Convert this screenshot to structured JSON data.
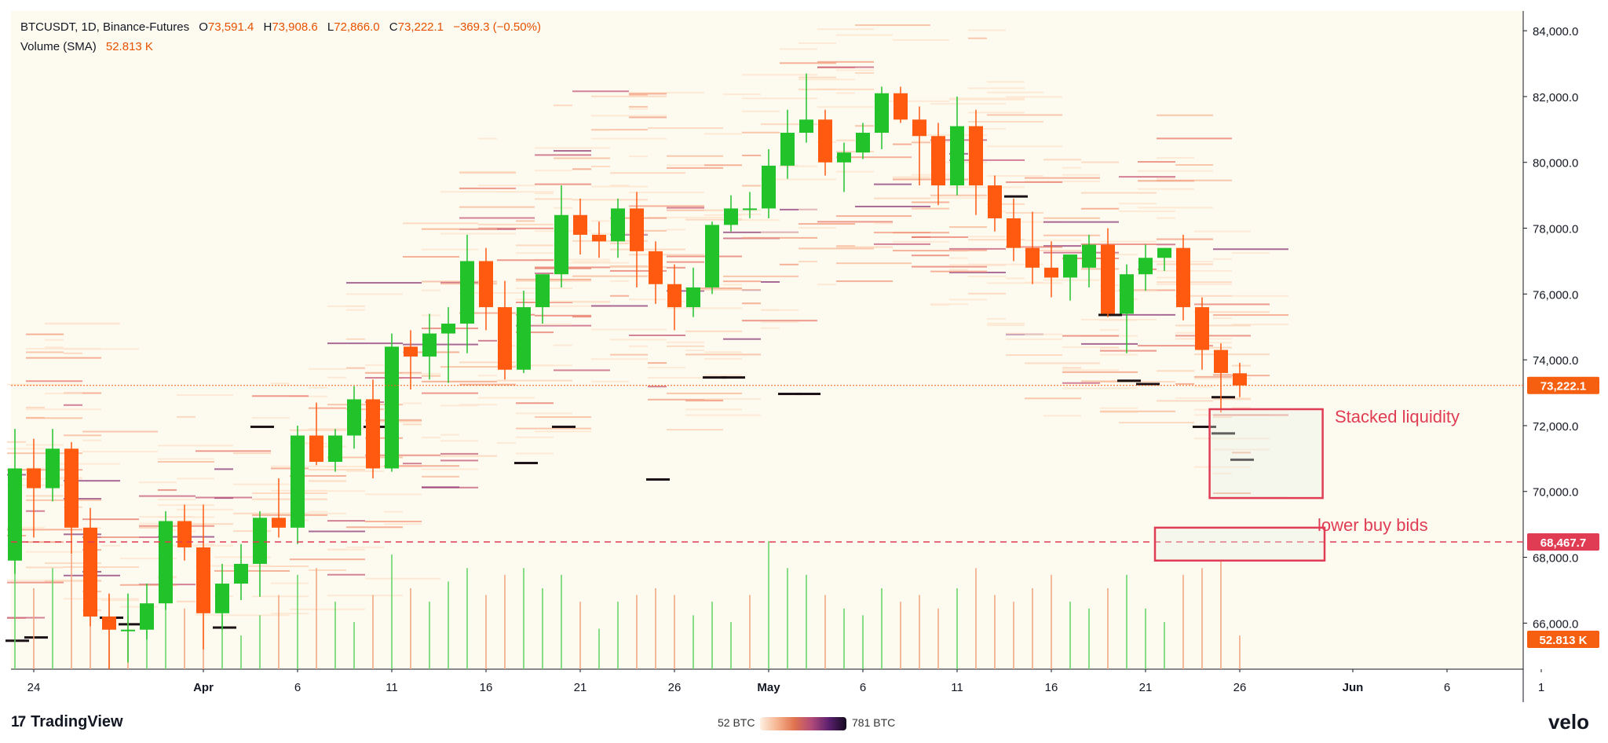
{
  "legend": {
    "symbol": "BTCUSDT, 1D, Binance-Futures",
    "open_label": "O",
    "open": "73,591.4",
    "high_label": "H",
    "high": "73,908.6",
    "low_label": "L",
    "low": "72,866.0",
    "close_label": "C",
    "close": "73,222.1",
    "change": "−369.3 (−0.50%)",
    "volume_label": "Volume (SMA)",
    "volume_value": "52.813 K"
  },
  "price_badges": {
    "last": "73,222.1",
    "line": "68,467.7",
    "volume": "52.813 K"
  },
  "annotations": {
    "stacked": "Stacked liquidity",
    "lower_bids": "lower buy bids"
  },
  "footer": {
    "brand": "TradingView",
    "brand_mark": "17",
    "scale_min": "52 BTC",
    "scale_max": "781 BTC",
    "velo": "velo"
  },
  "colors": {
    "up": "#22c22a",
    "down": "#ff5a0f",
    "background": "#fdfbf0",
    "accent": "#e03c54",
    "badge": "#f55f0f"
  },
  "chart_data": {
    "type": "candlestick",
    "title": "BTCUSDT, 1D, Binance-Futures",
    "y_axis": {
      "min": 64600,
      "max": 84600,
      "ticks": [
        66000,
        68000,
        70000,
        72000,
        74000,
        76000,
        78000,
        80000,
        82000,
        84000
      ],
      "tick_labels": [
        "66,000.0",
        "68,000.0",
        "70,000.0",
        "72,000.0",
        "74,000.0",
        "76,000.0",
        "78,000.0",
        "80,000.0",
        "82,000.0",
        "84,000.0"
      ]
    },
    "x_axis": {
      "labels": [
        {
          "t": "24",
          "day": 0
        },
        {
          "t": "Apr",
          "day": 9
        },
        {
          "t": "6",
          "day": 14
        },
        {
          "t": "11",
          "day": 19
        },
        {
          "t": "16",
          "day": 24
        },
        {
          "t": "21",
          "day": 29
        },
        {
          "t": "26",
          "day": 34
        },
        {
          "t": "May",
          "day": 39
        },
        {
          "t": "6",
          "day": 44
        },
        {
          "t": "11",
          "day": 49
        },
        {
          "t": "16",
          "day": 54
        },
        {
          "t": "21",
          "day": 59
        },
        {
          "t": "26",
          "day": 64
        },
        {
          "t": "Jun",
          "day": 70
        },
        {
          "t": "6",
          "day": 75
        },
        {
          "t": "1",
          "day": 80
        }
      ]
    },
    "candles": [
      {
        "d": -1,
        "o": 67900,
        "h": 71900,
        "l": 67500,
        "c": 70700
      },
      {
        "d": 0,
        "o": 70700,
        "h": 71600,
        "l": 68600,
        "c": 70100
      },
      {
        "d": 1,
        "o": 70100,
        "h": 71900,
        "l": 69700,
        "c": 71300
      },
      {
        "d": 2,
        "o": 71300,
        "h": 71500,
        "l": 68100,
        "c": 68900
      },
      {
        "d": 3,
        "o": 68900,
        "h": 69500,
        "l": 65900,
        "c": 66200
      },
      {
        "d": 4,
        "o": 66200,
        "h": 66900,
        "l": 64600,
        "c": 65800
      },
      {
        "d": 5,
        "o": 65800,
        "h": 66900,
        "l": 64800,
        "c": 65800
      },
      {
        "d": 6,
        "o": 65800,
        "h": 67200,
        "l": 65500,
        "c": 66600
      },
      {
        "d": 7,
        "o": 66600,
        "h": 69400,
        "l": 66400,
        "c": 69100
      },
      {
        "d": 8,
        "o": 69100,
        "h": 69600,
        "l": 67900,
        "c": 68300
      },
      {
        "d": 9,
        "o": 68300,
        "h": 69600,
        "l": 65200,
        "c": 66300
      },
      {
        "d": 10,
        "o": 66300,
        "h": 67800,
        "l": 65800,
        "c": 67200
      },
      {
        "d": 11,
        "o": 67200,
        "h": 68400,
        "l": 66700,
        "c": 67800
      },
      {
        "d": 12,
        "o": 67800,
        "h": 69400,
        "l": 66800,
        "c": 69200
      },
      {
        "d": 13,
        "o": 69200,
        "h": 70400,
        "l": 68600,
        "c": 68900
      },
      {
        "d": 14,
        "o": 68900,
        "h": 72000,
        "l": 68400,
        "c": 71700
      },
      {
        "d": 15,
        "o": 71700,
        "h": 72700,
        "l": 70800,
        "c": 70900
      },
      {
        "d": 16,
        "o": 70900,
        "h": 71900,
        "l": 70600,
        "c": 71700
      },
      {
        "d": 17,
        "o": 71700,
        "h": 73200,
        "l": 71300,
        "c": 72800
      },
      {
        "d": 18,
        "o": 72800,
        "h": 73400,
        "l": 70400,
        "c": 70700
      },
      {
        "d": 19,
        "o": 70700,
        "h": 74800,
        "l": 70600,
        "c": 74400
      },
      {
        "d": 20,
        "o": 74400,
        "h": 74900,
        "l": 73100,
        "c": 74100
      },
      {
        "d": 21,
        "o": 74100,
        "h": 75400,
        "l": 73400,
        "c": 74800
      },
      {
        "d": 22,
        "o": 74800,
        "h": 75600,
        "l": 73300,
        "c": 75100
      },
      {
        "d": 23,
        "o": 75100,
        "h": 77800,
        "l": 74200,
        "c": 77000
      },
      {
        "d": 24,
        "o": 77000,
        "h": 77400,
        "l": 74900,
        "c": 75600
      },
      {
        "d": 25,
        "o": 75600,
        "h": 76400,
        "l": 73400,
        "c": 73700
      },
      {
        "d": 26,
        "o": 73700,
        "h": 76100,
        "l": 73600,
        "c": 75600
      },
      {
        "d": 27,
        "o": 75600,
        "h": 76600,
        "l": 75100,
        "c": 76600
      },
      {
        "d": 28,
        "o": 76600,
        "h": 79300,
        "l": 76200,
        "c": 78400
      },
      {
        "d": 29,
        "o": 78400,
        "h": 78900,
        "l": 77200,
        "c": 77800
      },
      {
        "d": 30,
        "o": 77800,
        "h": 78200,
        "l": 77100,
        "c": 77600
      },
      {
        "d": 31,
        "o": 77600,
        "h": 78900,
        "l": 77100,
        "c": 78600
      },
      {
        "d": 32,
        "o": 78600,
        "h": 79100,
        "l": 76200,
        "c": 77300
      },
      {
        "d": 33,
        "o": 77300,
        "h": 77600,
        "l": 75700,
        "c": 76300
      },
      {
        "d": 34,
        "o": 76300,
        "h": 76900,
        "l": 74900,
        "c": 75600
      },
      {
        "d": 35,
        "o": 75600,
        "h": 76800,
        "l": 75300,
        "c": 76200
      },
      {
        "d": 36,
        "o": 76200,
        "h": 78200,
        "l": 76000,
        "c": 78100
      },
      {
        "d": 37,
        "o": 78100,
        "h": 79000,
        "l": 77900,
        "c": 78600
      },
      {
        "d": 38,
        "o": 78600,
        "h": 79100,
        "l": 78300,
        "c": 78600
      },
      {
        "d": 39,
        "o": 78600,
        "h": 80400,
        "l": 78300,
        "c": 79900
      },
      {
        "d": 40,
        "o": 79900,
        "h": 81600,
        "l": 79500,
        "c": 80900
      },
      {
        "d": 41,
        "o": 80900,
        "h": 82700,
        "l": 80600,
        "c": 81300
      },
      {
        "d": 42,
        "o": 81300,
        "h": 81600,
        "l": 79600,
        "c": 80000
      },
      {
        "d": 43,
        "o": 80000,
        "h": 80600,
        "l": 79100,
        "c": 80300
      },
      {
        "d": 44,
        "o": 80300,
        "h": 81200,
        "l": 80100,
        "c": 80900
      },
      {
        "d": 45,
        "o": 80900,
        "h": 82300,
        "l": 80400,
        "c": 82100
      },
      {
        "d": 46,
        "o": 82100,
        "h": 82300,
        "l": 81200,
        "c": 81300
      },
      {
        "d": 47,
        "o": 81300,
        "h": 81700,
        "l": 79300,
        "c": 80800
      },
      {
        "d": 48,
        "o": 80800,
        "h": 81200,
        "l": 78700,
        "c": 79300
      },
      {
        "d": 49,
        "o": 79300,
        "h": 82000,
        "l": 79000,
        "c": 81100
      },
      {
        "d": 50,
        "o": 81100,
        "h": 81600,
        "l": 78400,
        "c": 79300
      },
      {
        "d": 51,
        "o": 79300,
        "h": 79600,
        "l": 77900,
        "c": 78300
      },
      {
        "d": 52,
        "o": 78300,
        "h": 78900,
        "l": 77000,
        "c": 77400
      },
      {
        "d": 53,
        "o": 77400,
        "h": 78500,
        "l": 76300,
        "c": 76800
      },
      {
        "d": 54,
        "o": 76800,
        "h": 77600,
        "l": 75900,
        "c": 76500
      },
      {
        "d": 55,
        "o": 76500,
        "h": 77000,
        "l": 75800,
        "c": 77200
      },
      {
        "d": 56,
        "o": 76800,
        "h": 77800,
        "l": 76200,
        "c": 77500
      },
      {
        "d": 57,
        "o": 77500,
        "h": 78000,
        "l": 75300,
        "c": 75400
      },
      {
        "d": 58,
        "o": 75400,
        "h": 76900,
        "l": 74200,
        "c": 76600
      },
      {
        "d": 59,
        "o": 76600,
        "h": 77500,
        "l": 76100,
        "c": 77100
      },
      {
        "d": 60,
        "o": 77100,
        "h": 77400,
        "l": 76700,
        "c": 77400
      },
      {
        "d": 61,
        "o": 77400,
        "h": 77800,
        "l": 75200,
        "c": 75600
      },
      {
        "d": 62,
        "o": 75600,
        "h": 75900,
        "l": 73700,
        "c": 74300
      },
      {
        "d": 63,
        "o": 74300,
        "h": 74500,
        "l": 72400,
        "c": 73600
      },
      {
        "d": 64,
        "o": 73591,
        "h": 73908,
        "l": 72866,
        "c": 73222
      }
    ],
    "volume": [
      {
        "d": -1,
        "v": 0.9,
        "up": true
      },
      {
        "d": 0,
        "v": 0.6,
        "up": false
      },
      {
        "d": 1,
        "v": 0.75,
        "up": true
      },
      {
        "d": 2,
        "v": 0.85,
        "up": false
      },
      {
        "d": 3,
        "v": 0.7,
        "up": false
      },
      {
        "d": 4,
        "v": 0.55,
        "up": false
      },
      {
        "d": 5,
        "v": 0.4,
        "up": false
      },
      {
        "d": 6,
        "v": 0.35,
        "up": true
      },
      {
        "d": 7,
        "v": 0.6,
        "up": true
      },
      {
        "d": 8,
        "v": 0.45,
        "up": false
      },
      {
        "d": 9,
        "v": 0.55,
        "up": false
      },
      {
        "d": 10,
        "v": 0.4,
        "up": true
      },
      {
        "d": 11,
        "v": 0.25,
        "up": true
      },
      {
        "d": 12,
        "v": 0.4,
        "up": true
      },
      {
        "d": 13,
        "v": 0.55,
        "up": false
      },
      {
        "d": 14,
        "v": 0.7,
        "up": true
      },
      {
        "d": 15,
        "v": 0.75,
        "up": false
      },
      {
        "d": 16,
        "v": 0.5,
        "up": true
      },
      {
        "d": 17,
        "v": 0.35,
        "up": true
      },
      {
        "d": 18,
        "v": 0.55,
        "up": false
      },
      {
        "d": 19,
        "v": 0.85,
        "up": true
      },
      {
        "d": 20,
        "v": 0.6,
        "up": false
      },
      {
        "d": 21,
        "v": 0.5,
        "up": true
      },
      {
        "d": 22,
        "v": 0.65,
        "up": true
      },
      {
        "d": 23,
        "v": 0.75,
        "up": true
      },
      {
        "d": 24,
        "v": 0.55,
        "up": false
      },
      {
        "d": 25,
        "v": 0.7,
        "up": false
      },
      {
        "d": 26,
        "v": 0.75,
        "up": true
      },
      {
        "d": 27,
        "v": 0.6,
        "up": true
      },
      {
        "d": 28,
        "v": 0.7,
        "up": true
      },
      {
        "d": 29,
        "v": 0.5,
        "up": false
      },
      {
        "d": 30,
        "v": 0.3,
        "up": true
      },
      {
        "d": 31,
        "v": 0.5,
        "up": true
      },
      {
        "d": 32,
        "v": 0.55,
        "up": false
      },
      {
        "d": 33,
        "v": 0.6,
        "up": false
      },
      {
        "d": 34,
        "v": 0.55,
        "up": false
      },
      {
        "d": 35,
        "v": 0.4,
        "up": true
      },
      {
        "d": 36,
        "v": 0.5,
        "up": true
      },
      {
        "d": 37,
        "v": 0.35,
        "up": true
      },
      {
        "d": 38,
        "v": 0.55,
        "up": false
      },
      {
        "d": 39,
        "v": 0.95,
        "up": true
      },
      {
        "d": 40,
        "v": 0.75,
        "up": true
      },
      {
        "d": 41,
        "v": 0.7,
        "up": true
      },
      {
        "d": 42,
        "v": 0.55,
        "up": false
      },
      {
        "d": 43,
        "v": 0.45,
        "up": true
      },
      {
        "d": 44,
        "v": 0.4,
        "up": true
      },
      {
        "d": 45,
        "v": 0.6,
        "up": true
      },
      {
        "d": 46,
        "v": 0.5,
        "up": false
      },
      {
        "d": 47,
        "v": 0.55,
        "up": false
      },
      {
        "d": 48,
        "v": 0.45,
        "up": false
      },
      {
        "d": 49,
        "v": 0.6,
        "up": true
      },
      {
        "d": 50,
        "v": 0.75,
        "up": false
      },
      {
        "d": 51,
        "v": 0.55,
        "up": false
      },
      {
        "d": 52,
        "v": 0.5,
        "up": false
      },
      {
        "d": 53,
        "v": 0.6,
        "up": false
      },
      {
        "d": 54,
        "v": 0.7,
        "up": false
      },
      {
        "d": 55,
        "v": 0.5,
        "up": true
      },
      {
        "d": 56,
        "v": 0.45,
        "up": true
      },
      {
        "d": 57,
        "v": 0.6,
        "up": false
      },
      {
        "d": 58,
        "v": 0.7,
        "up": true
      },
      {
        "d": 59,
        "v": 0.45,
        "up": true
      },
      {
        "d": 60,
        "v": 0.35,
        "up": true
      },
      {
        "d": 61,
        "v": 0.7,
        "up": false
      },
      {
        "d": 62,
        "v": 0.75,
        "up": false
      },
      {
        "d": 63,
        "v": 0.8,
        "up": false
      },
      {
        "d": 64,
        "v": 0.25,
        "up": false
      }
    ],
    "last_price": 73222.1,
    "level_price": 68467.7,
    "zones": [
      {
        "name": "stacked-liquidity",
        "d0": 62.4,
        "d1": 68.4,
        "p0": 69800,
        "p1": 72500
      },
      {
        "name": "lower-buy-bids",
        "d0": 59.5,
        "d1": 68.5,
        "p0": 67900,
        "p1": 68900
      }
    ]
  }
}
